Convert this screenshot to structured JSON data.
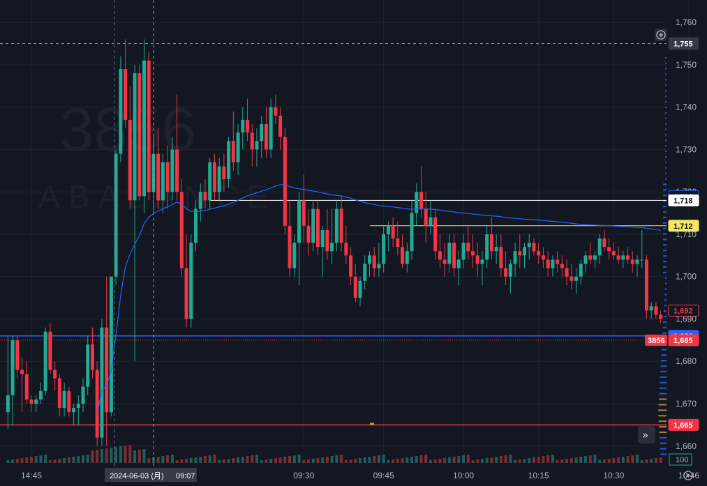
{
  "watermark": {
    "symbol": "3856",
    "name": "ABALANCE"
  },
  "colors": {
    "background": "#131722",
    "grid": "#1f2430",
    "up": "#26a69a",
    "down": "#ef5350",
    "up_body": "#22ab94",
    "down_body": "#f23645",
    "vwap": "#2962ff",
    "text": "#b2b5be"
  },
  "chart_data": {
    "type": "candlestick",
    "y_axis": {
      "min": 1655,
      "max": 1762,
      "ticks": [
        "1,760",
        "1,750",
        "1,740",
        "1,730",
        "1,720",
        "1,710",
        "1,700",
        "1,690",
        "1,680",
        "1,670",
        "1,660"
      ],
      "tick_values": [
        1760,
        1750,
        1740,
        1730,
        1720,
        1710,
        1700,
        1690,
        1680,
        1670,
        1660
      ]
    },
    "x_axis": {
      "ticks": [
        "14:45",
        "09:30",
        "09:45",
        "10:00",
        "10:15",
        "10:30",
        "10:46"
      ],
      "tick_index": [
        5,
        63,
        80,
        97,
        113,
        129,
        145
      ]
    },
    "crosshair": {
      "price_label": "1,755",
      "time_label": "2024-06-03 (月)",
      "time_label2": "09:07"
    },
    "price_lines": [
      {
        "label": "1,719",
        "value": 1719,
        "kind": "vwap"
      },
      {
        "label": "1,718",
        "value": 1718,
        "kind": "white"
      },
      {
        "label": "1,712",
        "value": 1712,
        "kind": "yellow"
      },
      {
        "label": "1,692",
        "value": 1692,
        "kind": "red-outline"
      },
      {
        "label": "1,686",
        "value": 1686,
        "kind": "blue"
      },
      {
        "label": "1,685",
        "value": 1685,
        "kind": "last",
        "tag": "3856"
      },
      {
        "label": "1,665",
        "value": 1665,
        "kind": "red"
      }
    ],
    "volume_label": "100",
    "candles": [
      [
        1668,
        1686,
        1664,
        1672
      ],
      [
        1672,
        1686,
        1665,
        1685
      ],
      [
        1685,
        1686,
        1676,
        1678
      ],
      [
        1678,
        1681,
        1668,
        1677
      ],
      [
        1677,
        1680,
        1670,
        1671
      ],
      [
        1671,
        1672,
        1668,
        1670
      ],
      [
        1670,
        1672,
        1668,
        1671
      ],
      [
        1671,
        1675,
        1670,
        1673
      ],
      [
        1673,
        1688,
        1672,
        1687
      ],
      [
        1687,
        1689,
        1677,
        1678
      ],
      [
        1678,
        1680,
        1673,
        1676
      ],
      [
        1676,
        1677,
        1667,
        1669
      ],
      [
        1669,
        1675,
        1667,
        1673
      ],
      [
        1673,
        1674,
        1667,
        1668
      ],
      [
        1668,
        1670,
        1665,
        1669
      ],
      [
        1669,
        1672,
        1665,
        1670
      ],
      [
        1670,
        1676,
        1668,
        1674
      ],
      [
        1674,
        1686,
        1672,
        1684
      ],
      [
        1684,
        1688,
        1676,
        1678
      ],
      [
        1678,
        1680,
        1660,
        1662
      ],
      [
        1662,
        1690,
        1660,
        1688
      ],
      [
        1688,
        1700,
        1660,
        1668
      ],
      [
        1668,
        1700,
        1667,
        1700
      ],
      [
        1700,
        1730,
        1698,
        1729
      ],
      [
        1729,
        1752,
        1727,
        1749
      ],
      [
        1749,
        1756,
        1735,
        1737
      ],
      [
        1737,
        1745,
        1716,
        1718
      ],
      [
        1718,
        1750,
        1680,
        1748
      ],
      [
        1748,
        1750,
        1718,
        1719
      ],
      [
        1719,
        1756,
        1715,
        1751
      ],
      [
        1751,
        1753,
        1718,
        1720
      ],
      [
        1720,
        1733,
        1715,
        1729
      ],
      [
        1729,
        1735,
        1716,
        1718
      ],
      [
        1718,
        1729,
        1715,
        1727
      ],
      [
        1727,
        1731,
        1716,
        1720
      ],
      [
        1720,
        1733,
        1718,
        1730
      ],
      [
        1730,
        1743,
        1718,
        1720
      ],
      [
        1720,
        1723,
        1700,
        1702
      ],
      [
        1702,
        1710,
        1688,
        1690
      ],
      [
        1690,
        1710,
        1688,
        1708
      ],
      [
        1708,
        1718,
        1706,
        1716
      ],
      [
        1716,
        1722,
        1713,
        1720
      ],
      [
        1720,
        1723,
        1716,
        1718
      ],
      [
        1718,
        1728,
        1716,
        1727
      ],
      [
        1727,
        1729,
        1718,
        1720
      ],
      [
        1720,
        1728,
        1718,
        1726
      ],
      [
        1726,
        1729,
        1720,
        1723
      ],
      [
        1723,
        1733,
        1721,
        1732
      ],
      [
        1732,
        1739,
        1725,
        1727
      ],
      [
        1727,
        1736,
        1724,
        1734
      ],
      [
        1734,
        1740,
        1730,
        1737
      ],
      [
        1737,
        1742,
        1732,
        1734
      ],
      [
        1734,
        1736,
        1726,
        1730
      ],
      [
        1730,
        1735,
        1726,
        1732
      ],
      [
        1732,
        1738,
        1728,
        1736
      ],
      [
        1736,
        1740,
        1728,
        1730
      ],
      [
        1730,
        1742,
        1728,
        1740
      ],
      [
        1740,
        1743,
        1736,
        1738
      ],
      [
        1738,
        1740,
        1730,
        1733
      ],
      [
        1733,
        1735,
        1710,
        1712
      ],
      [
        1712,
        1718,
        1700,
        1702
      ],
      [
        1702,
        1710,
        1700,
        1708
      ],
      [
        1708,
        1720,
        1698,
        1718
      ],
      [
        1718,
        1724,
        1708,
        1712
      ],
      [
        1712,
        1716,
        1705,
        1708
      ],
      [
        1708,
        1718,
        1706,
        1716
      ],
      [
        1716,
        1718,
        1705,
        1707
      ],
      [
        1707,
        1712,
        1700,
        1711
      ],
      [
        1711,
        1716,
        1704,
        1706
      ],
      [
        1706,
        1716,
        1703,
        1708
      ],
      [
        1708,
        1718,
        1706,
        1716
      ],
      [
        1716,
        1719,
        1706,
        1708
      ],
      [
        1708,
        1712,
        1703,
        1705
      ],
      [
        1705,
        1707,
        1698,
        1700
      ],
      [
        1700,
        1703,
        1694,
        1695
      ],
      [
        1695,
        1700,
        1693,
        1699
      ],
      [
        1699,
        1705,
        1697,
        1703
      ],
      [
        1703,
        1706,
        1700,
        1705
      ],
      [
        1705,
        1707,
        1700,
        1702
      ],
      [
        1702,
        1708,
        1700,
        1703
      ],
      [
        1703,
        1712,
        1701,
        1710
      ],
      [
        1710,
        1713,
        1706,
        1712
      ],
      [
        1712,
        1714,
        1707,
        1709
      ],
      [
        1709,
        1713,
        1705,
        1707
      ],
      [
        1707,
        1710,
        1702,
        1703
      ],
      [
        1703,
        1708,
        1701,
        1706
      ],
      [
        1706,
        1718,
        1704,
        1715
      ],
      [
        1715,
        1722,
        1712,
        1720
      ],
      [
        1720,
        1726,
        1714,
        1716
      ],
      [
        1716,
        1720,
        1708,
        1712
      ],
      [
        1712,
        1718,
        1710,
        1714
      ],
      [
        1714,
        1716,
        1704,
        1706
      ],
      [
        1706,
        1710,
        1702,
        1704
      ],
      [
        1704,
        1708,
        1700,
        1703
      ],
      [
        1703,
        1710,
        1701,
        1708
      ],
      [
        1708,
        1710,
        1700,
        1702
      ],
      [
        1702,
        1706,
        1698,
        1704
      ],
      [
        1704,
        1710,
        1702,
        1708
      ],
      [
        1708,
        1712,
        1704,
        1706
      ],
      [
        1706,
        1710,
        1702,
        1705
      ],
      [
        1705,
        1708,
        1700,
        1703
      ],
      [
        1703,
        1706,
        1698,
        1704
      ],
      [
        1704,
        1712,
        1702,
        1710
      ],
      [
        1710,
        1714,
        1704,
        1706
      ],
      [
        1706,
        1710,
        1703,
        1707
      ],
      [
        1707,
        1710,
        1700,
        1702
      ],
      [
        1702,
        1706,
        1698,
        1700
      ],
      [
        1700,
        1704,
        1696,
        1703
      ],
      [
        1703,
        1708,
        1700,
        1706
      ],
      [
        1706,
        1710,
        1702,
        1705
      ],
      [
        1705,
        1708,
        1702,
        1707
      ],
      [
        1707,
        1710,
        1704,
        1708
      ],
      [
        1708,
        1709,
        1705,
        1706
      ],
      [
        1706,
        1708,
        1703,
        1705
      ],
      [
        1705,
        1707,
        1702,
        1704
      ],
      [
        1704,
        1706,
        1700,
        1702
      ],
      [
        1702,
        1705,
        1700,
        1704
      ],
      [
        1704,
        1706,
        1701,
        1703
      ],
      [
        1703,
        1705,
        1700,
        1702
      ],
      [
        1702,
        1704,
        1698,
        1700
      ],
      [
        1700,
        1703,
        1697,
        1699
      ],
      [
        1699,
        1702,
        1696,
        1700
      ],
      [
        1700,
        1704,
        1698,
        1703
      ],
      [
        1703,
        1706,
        1701,
        1705
      ],
      [
        1705,
        1708,
        1703,
        1704
      ],
      [
        1704,
        1706,
        1702,
        1705
      ],
      [
        1705,
        1710,
        1703,
        1709
      ],
      [
        1709,
        1711,
        1706,
        1707
      ],
      [
        1707,
        1709,
        1704,
        1706
      ],
      [
        1706,
        1708,
        1704,
        1705
      ],
      [
        1705,
        1707,
        1703,
        1704
      ],
      [
        1704,
        1706,
        1702,
        1705
      ],
      [
        1705,
        1707,
        1703,
        1704
      ],
      [
        1704,
        1706,
        1701,
        1703
      ],
      [
        1703,
        1705,
        1700,
        1704
      ],
      [
        1704,
        1711,
        1702,
        1704
      ],
      [
        1704,
        1705,
        1690,
        1692
      ],
      [
        1692,
        1694,
        1690,
        1693
      ],
      [
        1693,
        1694,
        1690,
        1691
      ],
      [
        1691,
        1692,
        1689,
        1690
      ]
    ]
  }
}
